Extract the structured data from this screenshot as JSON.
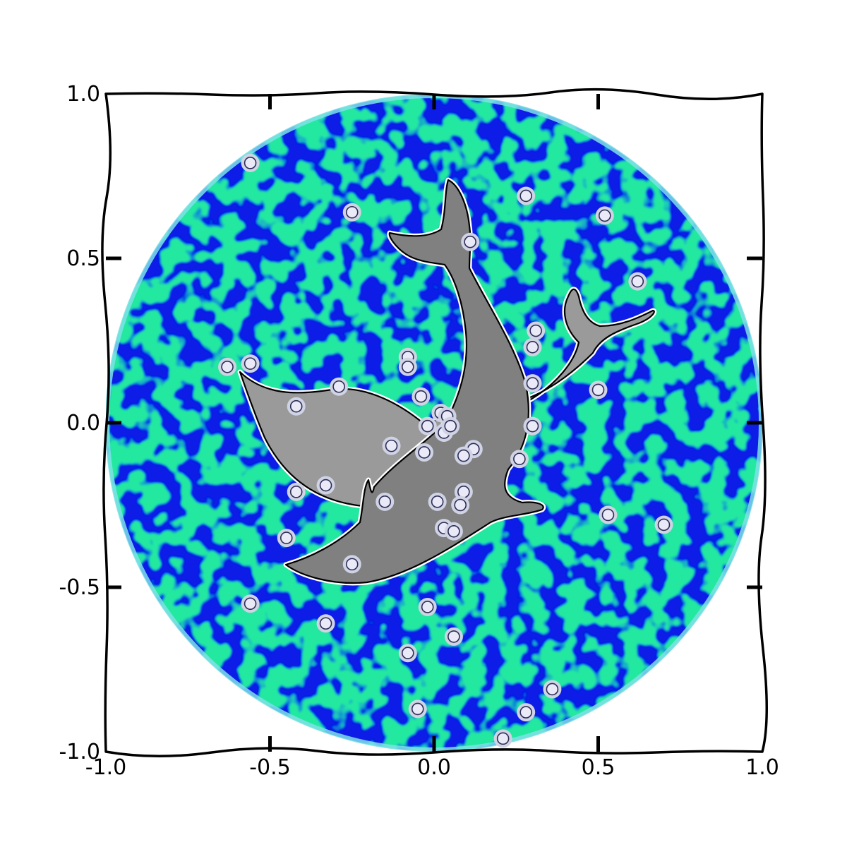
{
  "chart_data": {
    "type": "scatter",
    "title": "",
    "xlabel": "",
    "ylabel": "",
    "xlim": [
      -1.0,
      1.0
    ],
    "ylim": [
      -1.0,
      1.0
    ],
    "grid": false,
    "style": "xkcd",
    "x_ticks": [
      -1.0,
      -0.5,
      0.0,
      0.5,
      1.0
    ],
    "y_ticks": [
      -1.0,
      -0.5,
      0.0,
      0.5,
      1.0
    ],
    "x_tick_labels": [
      "-1.0",
      "-0.5",
      "0.0",
      "0.5",
      "1.0"
    ],
    "y_tick_labels": [
      "-1.0",
      "-0.5",
      "0.0",
      "0.5",
      "1.0"
    ],
    "background": {
      "shape": "circle",
      "center": [
        0.0,
        0.0
      ],
      "radius": 1.0,
      "colormap": [
        "#0a17e6",
        "#0b52e8",
        "#14c9a0",
        "#33f59a"
      ],
      "edge_color": "#7fe0e6"
    },
    "polygons": [
      {
        "name": "small dolphin",
        "fill": "#9a9a9a",
        "edge": "#000000"
      },
      {
        "name": "large dolphin",
        "fill": "#808080",
        "edge": "#000000"
      }
    ],
    "points": {
      "marker_fill": "#e9e9f7",
      "marker_edge": "#2d2d55",
      "x": [
        -0.56,
        -0.25,
        0.28,
        0.52,
        0.11,
        0.62,
        -0.63,
        -0.56,
        -0.08,
        -0.08,
        0.31,
        0.3,
        0.3,
        -0.29,
        -0.04,
        0.02,
        0.04,
        -0.42,
        -0.02,
        0.03,
        0.05,
        0.5,
        0.3,
        -0.13,
        -0.03,
        0.12,
        0.09,
        0.26,
        -0.33,
        -0.42,
        0.09,
        -0.15,
        0.01,
        0.08,
        0.53,
        0.7,
        0.03,
        0.06,
        -0.45,
        -0.25,
        -0.56,
        -0.02,
        -0.33,
        0.06,
        -0.08,
        0.36,
        -0.05,
        0.28,
        0.21
      ],
      "y": [
        0.79,
        0.64,
        0.69,
        0.63,
        0.55,
        0.43,
        0.17,
        0.18,
        0.2,
        0.17,
        0.28,
        0.23,
        0.12,
        0.11,
        0.08,
        0.03,
        0.02,
        0.05,
        -0.01,
        -0.03,
        -0.01,
        0.1,
        -0.01,
        -0.07,
        -0.09,
        -0.08,
        -0.1,
        -0.11,
        -0.19,
        -0.21,
        -0.21,
        -0.24,
        -0.24,
        -0.25,
        -0.28,
        -0.31,
        -0.32,
        -0.33,
        -0.35,
        -0.43,
        -0.55,
        -0.56,
        -0.61,
        -0.65,
        -0.7,
        -0.81,
        -0.87,
        -0.88,
        -0.96
      ]
    }
  }
}
